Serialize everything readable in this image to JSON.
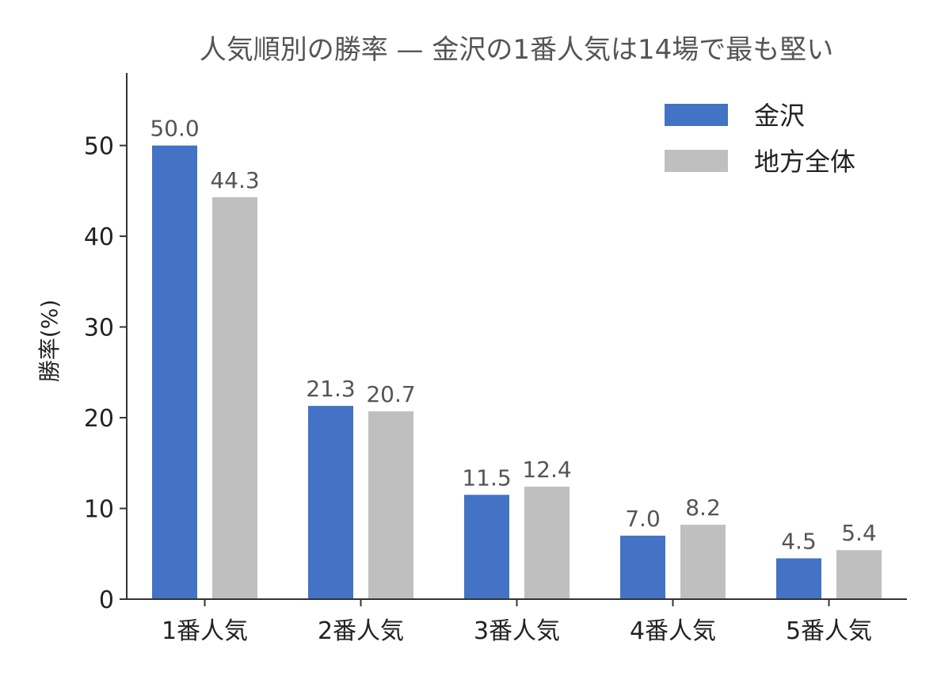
{
  "chart_data": {
    "type": "bar",
    "title": "人気順別の勝率 — 金沢の1番人気は14場で最も堅い",
    "xlabel": "",
    "ylabel": "勝率(%)",
    "categories": [
      "1番人気",
      "2番人気",
      "3番人気",
      "4番人気",
      "5番人気"
    ],
    "series": [
      {
        "name": "金沢",
        "color": "#4472c4",
        "values": [
          50.0,
          21.3,
          11.5,
          7.0,
          4.5
        ],
        "labels": [
          "50.0",
          "21.3",
          "11.5",
          "7.0",
          "4.5"
        ]
      },
      {
        "name": "地方全体",
        "color": "#bfbfbf",
        "values": [
          44.3,
          20.7,
          12.4,
          8.2,
          5.4
        ],
        "labels": [
          "44.3",
          "20.7",
          "12.4",
          "8.2",
          "5.4"
        ]
      }
    ],
    "ylim": [
      0,
      58
    ],
    "yticks": [
      0,
      10,
      20,
      30,
      40,
      50
    ],
    "grid": false,
    "legend_position": "top-right"
  }
}
